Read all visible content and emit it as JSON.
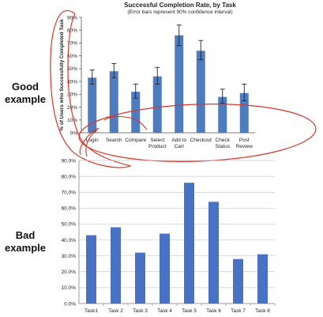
{
  "labels": {
    "good": [
      "Good",
      "example"
    ],
    "bad": [
      "Bad",
      "example"
    ]
  },
  "colors": {
    "good_bar": "#4f7bbf",
    "bad_bar": "#4a72c4",
    "annotation": "#d9362b",
    "grid": "#c8c8c8",
    "text": "#222222"
  },
  "chart_data": [
    {
      "type": "bar",
      "title": "Successful Completion Rate, by Task",
      "subtitle": "(Error bars represent 90% confidence interval)",
      "ylabel": "% of Users who Successfully Completed Task",
      "xlabel": "",
      "categories": [
        [
          "Login"
        ],
        [
          "Search"
        ],
        [
          "Compare"
        ],
        [
          "Select",
          "Product"
        ],
        [
          "Add to",
          "Cart"
        ],
        [
          "Checkout"
        ],
        [
          "Check",
          "Status"
        ],
        [
          "Post",
          "Review"
        ]
      ],
      "values": [
        43,
        48,
        32,
        44,
        76,
        64,
        28,
        31
      ],
      "error_low": [
        38,
        43,
        27,
        38,
        68,
        57,
        23,
        25
      ],
      "error_high": [
        49,
        54,
        38,
        51,
        84,
        72,
        34,
        38
      ],
      "ylim": [
        0,
        90
      ],
      "yticks": [
        "0%",
        "10%",
        "20%",
        "30%",
        "40%",
        "50%",
        "60%",
        "70%",
        "80%",
        "90%"
      ],
      "grid": false,
      "legend": "none"
    },
    {
      "type": "bar",
      "title": "",
      "xlabel": "",
      "ylabel": "",
      "categories": [
        "Task1",
        "Task 2",
        "Task 3",
        "Task 4",
        "Task 5",
        "Task 6",
        "Task 7",
        "Task 8"
      ],
      "values": [
        43,
        48,
        32,
        44,
        76,
        64,
        28,
        31
      ],
      "ylim": [
        0,
        90
      ],
      "yticks": [
        "0.0%",
        "10.0%",
        "20.0%",
        "30.0%",
        "40.0%",
        "50.0%",
        "60.0%",
        "70.0%",
        "80.0%",
        "90.0%"
      ],
      "grid": true,
      "legend": "none"
    }
  ]
}
